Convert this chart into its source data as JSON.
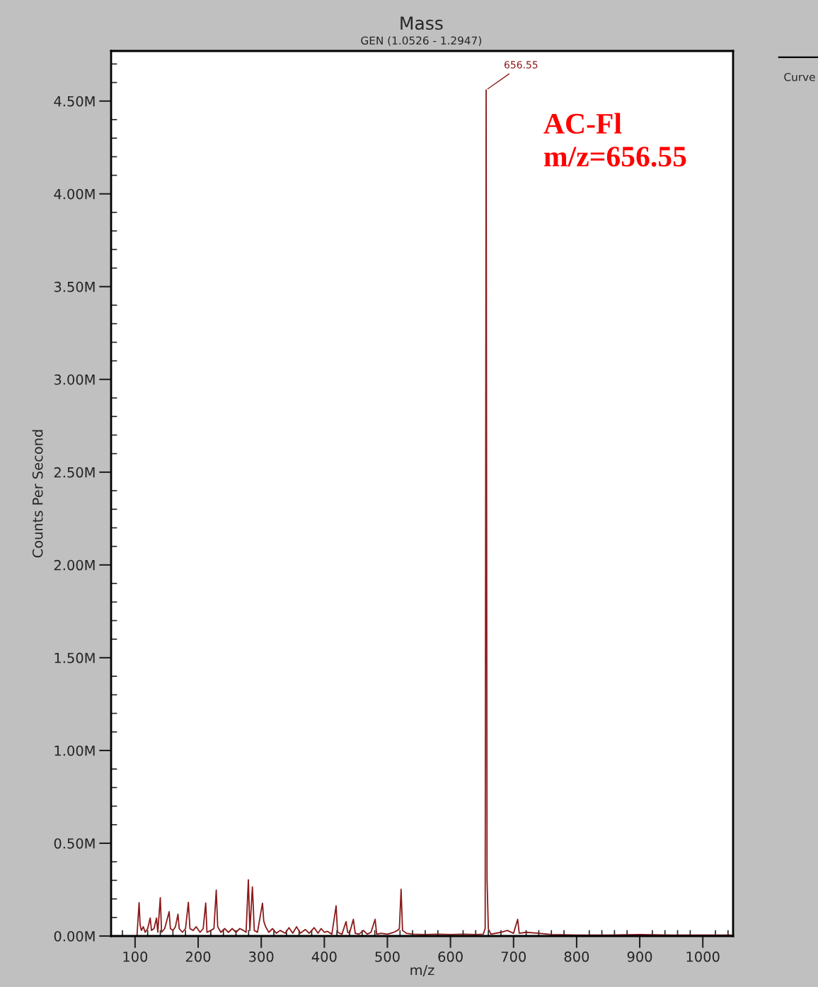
{
  "chart_data": {
    "type": "line",
    "title": "Mass",
    "subtitle": "GEN (1.0526 - 1.2947)",
    "xlabel": "m/z",
    "ylabel": "Counts Per Second",
    "annotations": [
      {
        "text": "656.55",
        "x": 656.55,
        "y": 4560000
      },
      "AC-Fl\nm/z=656.55",
      "Curve"
    ],
    "x": [
      103,
      106.4,
      108,
      110,
      113,
      116,
      120,
      124,
      126,
      130,
      134,
      136,
      140,
      142,
      147,
      154,
      156,
      160,
      164,
      168,
      170,
      175,
      180,
      184.5,
      187,
      192,
      197,
      203,
      208,
      212,
      214,
      220,
      225,
      228.7,
      231,
      236,
      242,
      248,
      254,
      260,
      266,
      272,
      276,
      279.6,
      282,
      286,
      289,
      294,
      302,
      304,
      307,
      312,
      318,
      324,
      330,
      338,
      344,
      350,
      356,
      362,
      370,
      376,
      384,
      390,
      395,
      400,
      405,
      412,
      418.7,
      421,
      428,
      434.5,
      437,
      440,
      446,
      449,
      455,
      462,
      468,
      474,
      480.5,
      483,
      490,
      500,
      510,
      516,
      519,
      521.7,
      524,
      530,
      540,
      560,
      580,
      600,
      620,
      640,
      652,
      655,
      656.55,
      658,
      660,
      664,
      680,
      690,
      700,
      706.5,
      709,
      720,
      740,
      760,
      800,
      850,
      900,
      950,
      1000,
      1045
    ],
    "series": [
      {
        "color": "#8b1a1a",
        "values": [
          0,
          180000,
          60000,
          30000,
          50000,
          20000,
          40000,
          97000,
          30000,
          40000,
          97000,
          20000,
          206000,
          20000,
          40000,
          131000,
          40000,
          30000,
          50000,
          118000,
          40000,
          20000,
          40000,
          182000,
          40000,
          30000,
          50000,
          20000,
          40000,
          178000,
          20000,
          30000,
          40000,
          247000,
          50000,
          20000,
          40000,
          20000,
          40000,
          20000,
          40000,
          30000,
          20000,
          303000,
          30000,
          265000,
          30000,
          20000,
          177000,
          80000,
          50000,
          20000,
          40000,
          15000,
          30000,
          15000,
          45000,
          15000,
          50000,
          15000,
          35000,
          15000,
          45000,
          15000,
          40000,
          20000,
          25000,
          10000,
          163000,
          20000,
          10000,
          78000,
          20000,
          15000,
          90000,
          15000,
          10000,
          30000,
          10000,
          20000,
          90000,
          10000,
          15000,
          10000,
          20000,
          30000,
          40000,
          252000,
          30000,
          15000,
          10000,
          8000,
          10000,
          8000,
          10000,
          8000,
          10000,
          40000,
          4560000,
          300000,
          40000,
          10000,
          20000,
          30000,
          15000,
          90000,
          15000,
          20000,
          15000,
          8000,
          5000,
          5000,
          8000,
          5000,
          5000,
          5000
        ]
      }
    ],
    "xlim": [
      62,
      1048
    ],
    "xticks": [
      100,
      200,
      300,
      400,
      500,
      600,
      700,
      800,
      900,
      1000
    ],
    "ylim": [
      0,
      4770000
    ],
    "yticks": [
      {
        "value": 0,
        "label": "0.00M"
      },
      {
        "value": 500000,
        "label": "0.50M"
      },
      {
        "value": 1000000,
        "label": "1.00M"
      },
      {
        "value": 1500000,
        "label": "1.50M"
      },
      {
        "value": 2000000,
        "label": "2.00M"
      },
      {
        "value": 2500000,
        "label": "2.50M"
      },
      {
        "value": 3000000,
        "label": "3.00M"
      },
      {
        "value": 3500000,
        "label": "3.50M"
      },
      {
        "value": 4000000,
        "label": "4.00M"
      },
      {
        "value": 4500000,
        "label": "4.50M"
      }
    ],
    "grid": false,
    "legend": false,
    "marker": "none",
    "line_style": "solid"
  }
}
